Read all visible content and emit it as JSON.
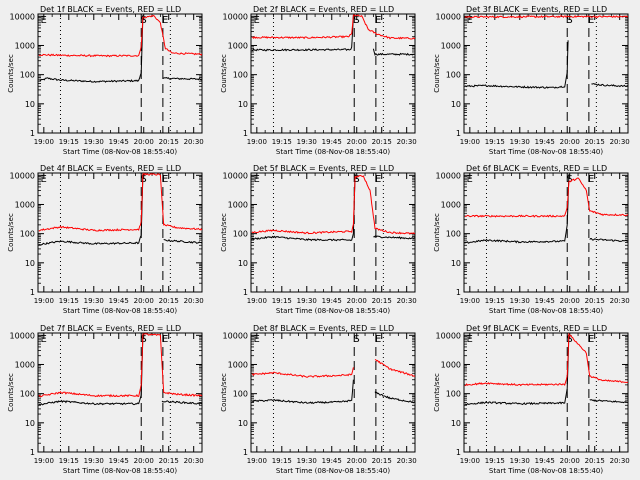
{
  "chart_data": {
    "type": "line",
    "xlabel": "Start Time (08-Nov-08 18:55:40)",
    "ylabel": "Counts/sec",
    "x_ticks": [
      "19:00",
      "19:15",
      "19:30",
      "19:45",
      "20:00",
      "20:15",
      "20:30"
    ],
    "x_tick_minutes": [
      0,
      15,
      30,
      45,
      60,
      75,
      90
    ],
    "x_range_minutes": [
      -3.5,
      95
    ],
    "y_log": true,
    "y_ticks": [
      "1",
      "10",
      "100",
      "1000",
      "10000"
    ],
    "y_tick_values": [
      1,
      10,
      100,
      1000,
      10000
    ],
    "ylim": [
      1,
      12000
    ],
    "vlines_dotted_minutes": [
      10,
      76
    ],
    "vlines_dashed_minutes": [
      58.5,
      71.5
    ],
    "markers": [
      {
        "label": "E",
        "x_minutes": -2
      },
      {
        "label": "S",
        "x_minutes": 58
      },
      {
        "label": "E",
        "x_minutes": 71
      }
    ],
    "series_colors": {
      "Events": "#000000",
      "LLD": "#ff0000"
    },
    "panels": [
      {
        "title": "Det 1f BLACK = Events, RED = LLD",
        "series": [
          {
            "name": "Events",
            "color": "#000000",
            "points": [
              [
                -3,
                60
              ],
              [
                2,
                75
              ],
              [
                10,
                65
              ],
              [
                30,
                58
              ],
              [
                57,
                62
              ],
              [
                58.5,
                120
              ],
              [
                59.5,
                11000
              ]
            ],
            "points2": [
              [
                71.5,
                75
              ],
              [
                95,
                70
              ]
            ]
          },
          {
            "name": "LLD",
            "color": "#ff0000",
            "points": [
              [
                -3,
                480
              ],
              [
                20,
                450
              ],
              [
                40,
                440
              ],
              [
                57,
                450
              ],
              [
                58.5,
                900
              ],
              [
                59.5,
                9000
              ],
              [
                66,
                10500
              ],
              [
                70,
                6000
              ],
              [
                73,
                800
              ],
              [
                77,
                550
              ],
              [
                95,
                500
              ]
            ]
          }
        ]
      },
      {
        "title": "Det 2f BLACK = Events, RED = LLD",
        "series": [
          {
            "name": "Events",
            "color": "#000000",
            "points": [
              [
                -3,
                700
              ],
              [
                56,
                720
              ],
              [
                57,
                850
              ],
              [
                58,
                11000
              ]
            ],
            "points2": [
              [
                70,
                800
              ],
              [
                71,
                500
              ],
              [
                95,
                500
              ]
            ]
          },
          {
            "name": "LLD",
            "color": "#ff0000",
            "points": [
              [
                -3,
                1900
              ],
              [
                30,
                1850
              ],
              [
                55,
                2000
              ],
              [
                57,
                2500
              ],
              [
                58,
                11000
              ],
              [
                63,
                10000
              ],
              [
                67,
                3500
              ],
              [
                72,
                2500
              ],
              [
                80,
                1800
              ],
              [
                95,
                1750
              ]
            ]
          }
        ]
      },
      {
        "title": "Det 3f BLACK = Events, RED = LLD",
        "series": [
          {
            "name": "Events",
            "color": "#000000",
            "points": [
              [
                -3,
                40
              ],
              [
                10,
                42
              ],
              [
                30,
                38
              ],
              [
                50,
                36
              ],
              [
                57,
                40
              ],
              [
                58.5,
                120
              ],
              [
                59,
                1500
              ]
            ],
            "points2": [
              [
                73,
                48
              ],
              [
                82,
                43
              ],
              [
                95,
                40
              ]
            ]
          },
          {
            "name": "LLD",
            "color": "#ff0000",
            "points": [
              [
                -3,
                9500
              ],
              [
                30,
                9600
              ],
              [
                60,
                9800
              ],
              [
                95,
                9700
              ]
            ]
          }
        ]
      },
      {
        "title": "Det 4f BLACK = Events, RED = LLD",
        "series": [
          {
            "name": "Events",
            "color": "#000000",
            "points": [
              [
                -3,
                42
              ],
              [
                10,
                55
              ],
              [
                30,
                45
              ],
              [
                57,
                48
              ],
              [
                58.5,
                90
              ],
              [
                59.5,
                11000
              ]
            ],
            "points2": [
              [
                72,
                60
              ],
              [
                95,
                48
              ]
            ]
          },
          {
            "name": "LLD",
            "color": "#ff0000",
            "points": [
              [
                -3,
                130
              ],
              [
                10,
                170
              ],
              [
                30,
                130
              ],
              [
                57,
                140
              ],
              [
                58.5,
                250
              ],
              [
                59.5,
                11000
              ],
              [
                70,
                10500
              ],
              [
                72,
                200
              ],
              [
                80,
                160
              ],
              [
                95,
                140
              ]
            ]
          }
        ]
      },
      {
        "title": "Det 5f BLACK = Events, RED = LLD",
        "series": [
          {
            "name": "Events",
            "color": "#000000",
            "points": [
              [
                -3,
                65
              ],
              [
                10,
                78
              ],
              [
                30,
                62
              ],
              [
                57,
                60
              ],
              [
                58,
                100
              ],
              [
                59,
                11000
              ]
            ],
            "points2": [
              [
                70,
                80
              ],
              [
                95,
                68
              ]
            ]
          },
          {
            "name": "LLD",
            "color": "#ff0000",
            "points": [
              [
                -3,
                110
              ],
              [
                10,
                130
              ],
              [
                30,
                105
              ],
              [
                57,
                120
              ],
              [
                58,
                200
              ],
              [
                59,
                9000
              ],
              [
                64,
                9500
              ],
              [
                68,
                3000
              ],
              [
                71,
                150
              ],
              [
                80,
                110
              ],
              [
                95,
                100
              ]
            ]
          }
        ]
      },
      {
        "title": "Det 6f BLACK = Events, RED = LLD",
        "series": [
          {
            "name": "Events",
            "color": "#000000",
            "points": [
              [
                -3,
                48
              ],
              [
                10,
                60
              ],
              [
                30,
                52
              ],
              [
                57,
                55
              ],
              [
                58.5,
                200
              ],
              [
                59.5,
                11000
              ]
            ],
            "points2": [
              [
                72,
                65
              ],
              [
                95,
                55
              ]
            ]
          },
          {
            "name": "LLD",
            "color": "#ff0000",
            "points": [
              [
                -3,
                400
              ],
              [
                30,
                400
              ],
              [
                57,
                400
              ],
              [
                58.5,
                800
              ],
              [
                59.5,
                6000
              ],
              [
                65,
                8000
              ],
              [
                70,
                3000
              ],
              [
                72,
                600
              ],
              [
                80,
                450
              ],
              [
                95,
                440
              ]
            ]
          }
        ]
      },
      {
        "title": "Det 7f BLACK = Events, RED = LLD",
        "series": [
          {
            "name": "Events",
            "color": "#000000",
            "points": [
              [
                -3,
                42
              ],
              [
                10,
                55
              ],
              [
                30,
                45
              ],
              [
                57,
                45
              ],
              [
                58.5,
                90
              ],
              [
                59.5,
                11000
              ]
            ],
            "points2": [
              [
                71,
                55
              ],
              [
                95,
                45
              ]
            ]
          },
          {
            "name": "LLD",
            "color": "#ff0000",
            "points": [
              [
                -3,
                80
              ],
              [
                10,
                110
              ],
              [
                30,
                85
              ],
              [
                57,
                85
              ],
              [
                58.5,
                200
              ],
              [
                59.5,
                11000
              ],
              [
                70,
                10000
              ],
              [
                72,
                110
              ],
              [
                80,
                95
              ],
              [
                95,
                85
              ]
            ]
          }
        ]
      },
      {
        "title": "Det 8f BLACK = Events, RED = LLD",
        "series": [
          {
            "name": "Events",
            "color": "#000000",
            "points": [
              [
                -3,
                55
              ],
              [
                10,
                60
              ],
              [
                30,
                48
              ],
              [
                50,
                52
              ],
              [
                57,
                58
              ],
              [
                58,
                300
              ]
            ],
            "points2": [
              [
                71,
                110
              ],
              [
                80,
                70
              ],
              [
                95,
                50
              ]
            ]
          },
          {
            "name": "LLD",
            "color": "#ff0000",
            "points": [
              [
                -3,
                450
              ],
              [
                10,
                520
              ],
              [
                30,
                380
              ],
              [
                50,
                420
              ],
              [
                57,
                450
              ],
              [
                58,
                800
              ]
            ],
            "points2": [
              [
                71,
                1500
              ],
              [
                80,
                700
              ],
              [
                95,
                400
              ]
            ]
          }
        ]
      },
      {
        "title": "Det 9f BLACK = Events, RED = LLD",
        "series": [
          {
            "name": "Events",
            "color": "#000000",
            "points": [
              [
                -3,
                43
              ],
              [
                10,
                50
              ],
              [
                30,
                45
              ],
              [
                57,
                48
              ],
              [
                58.5,
                150
              ],
              [
                59.5,
                11000
              ]
            ],
            "points2": [
              [
                72,
                60
              ],
              [
                95,
                50
              ]
            ]
          },
          {
            "name": "LLD",
            "color": "#ff0000",
            "points": [
              [
                -3,
                200
              ],
              [
                10,
                230
              ],
              [
                30,
                200
              ],
              [
                57,
                210
              ],
              [
                58.5,
                400
              ],
              [
                59.5,
                11000
              ],
              [
                70,
                2500
              ],
              [
                72,
                400
              ],
              [
                80,
                280
              ],
              [
                95,
                250
              ]
            ]
          }
        ]
      }
    ]
  }
}
